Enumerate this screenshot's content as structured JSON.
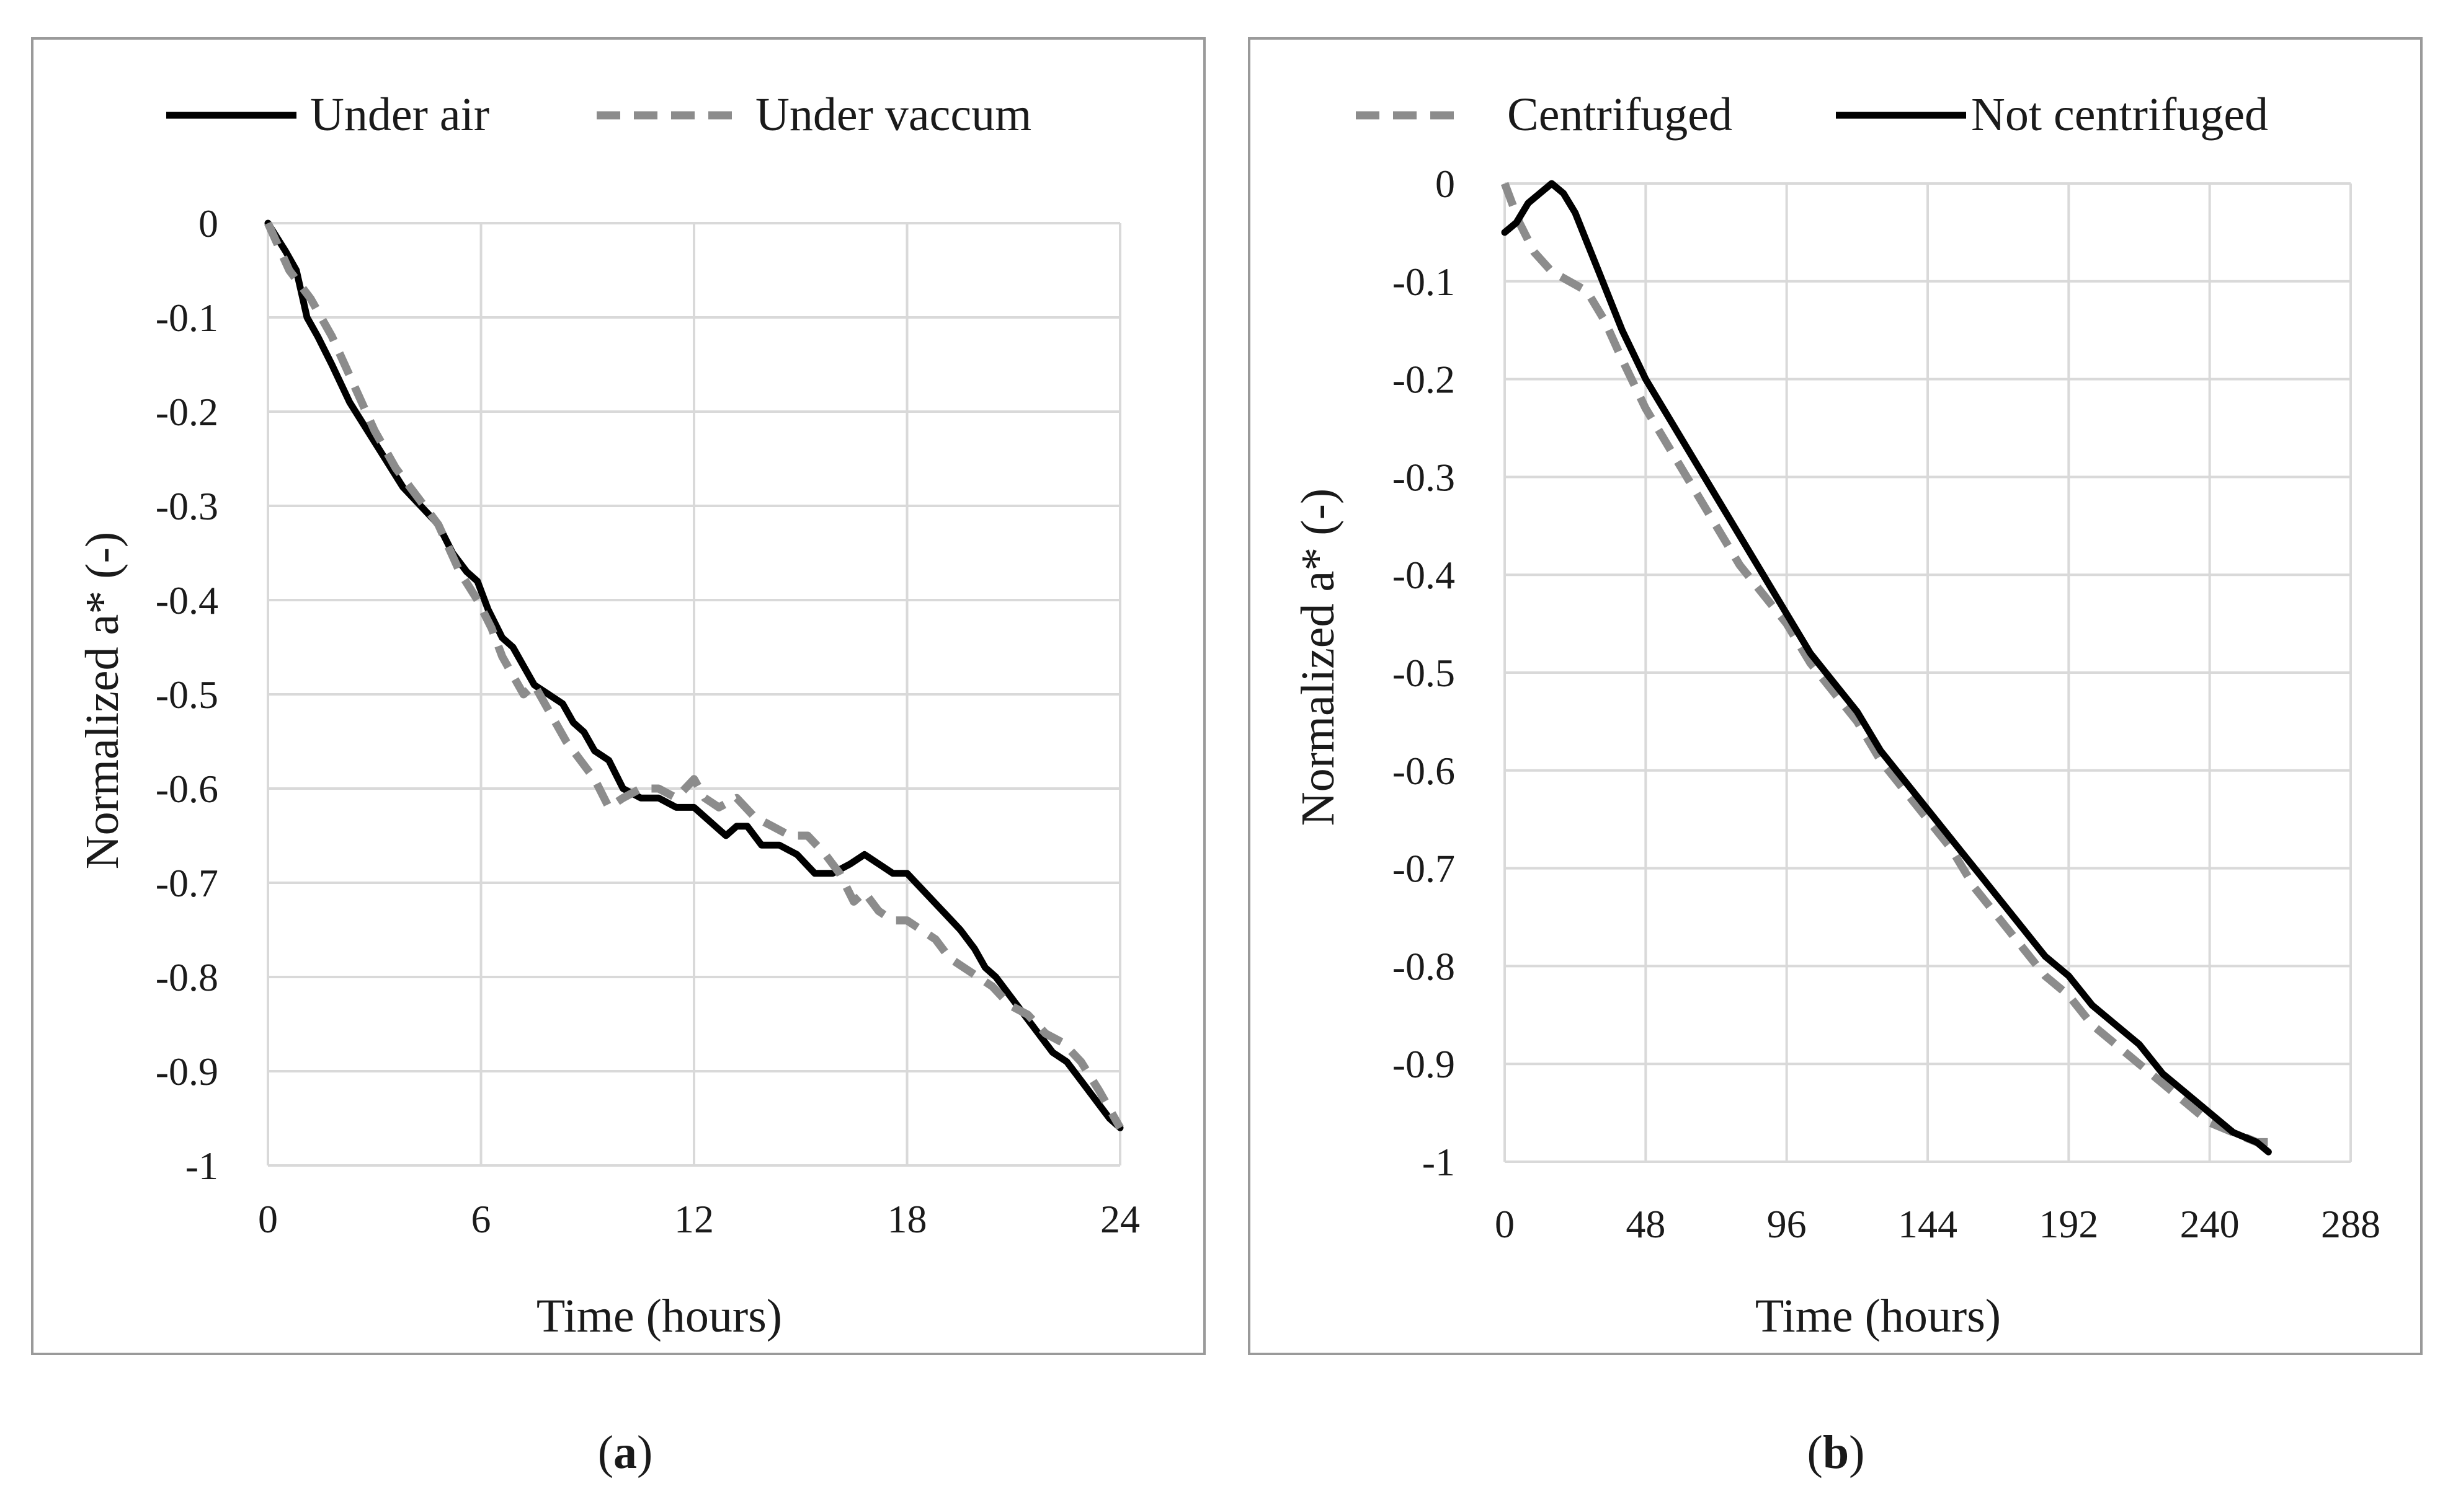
{
  "chart_data": [
    {
      "type": "line",
      "panel_label": "a",
      "xlabel": "Time (hours)",
      "ylabel": "Normalized a* (-)",
      "xlim": [
        0,
        24
      ],
      "ylim": [
        -1,
        0
      ],
      "x_ticks": [
        "0",
        "6",
        "12",
        "18",
        "24"
      ],
      "y_ticks": [
        "0",
        "-0.1",
        "-0.2",
        "-0.3",
        "-0.4",
        "-0.5",
        "-0.6",
        "-0.7",
        "-0.8",
        "-0.9",
        "-1"
      ],
      "legend_position": "top",
      "grid": true,
      "series": [
        {
          "name": "Under air",
          "style": "solid",
          "color": "#000000",
          "x": [
            0,
            0.5,
            0.8,
            1.1,
            1.4,
            1.8,
            2.3,
            2.8,
            3.3,
            3.8,
            4.3,
            4.8,
            5.2,
            5.6,
            5.9,
            6.2,
            6.6,
            6.9,
            7.2,
            7.5,
            7.9,
            8.3,
            8.6,
            8.9,
            9.2,
            9.6,
            10.0,
            10.5,
            11.0,
            11.5,
            12.0,
            12.3,
            12.6,
            12.9,
            13.2,
            13.5,
            13.9,
            14.4,
            14.9,
            15.4,
            15.9,
            16.4,
            16.8,
            17.2,
            17.6,
            18.0,
            18.5,
            19.0,
            19.5,
            19.9,
            20.2,
            20.5,
            20.9,
            21.3,
            21.7,
            22.1,
            22.5,
            22.9,
            23.3,
            23.7,
            24.0
          ],
          "values": [
            0,
            -0.03,
            -0.05,
            -0.1,
            -0.12,
            -0.15,
            -0.19,
            -0.22,
            -0.25,
            -0.28,
            -0.3,
            -0.32,
            -0.35,
            -0.37,
            -0.38,
            -0.41,
            -0.44,
            -0.45,
            -0.47,
            -0.49,
            -0.5,
            -0.51,
            -0.53,
            -0.54,
            -0.56,
            -0.57,
            -0.6,
            -0.61,
            -0.61,
            -0.62,
            -0.62,
            -0.63,
            -0.64,
            -0.65,
            -0.64,
            -0.64,
            -0.66,
            -0.66,
            -0.67,
            -0.69,
            -0.69,
            -0.68,
            -0.67,
            -0.68,
            -0.69,
            -0.69,
            -0.71,
            -0.73,
            -0.75,
            -0.77,
            -0.79,
            -0.8,
            -0.82,
            -0.84,
            -0.86,
            -0.88,
            -0.89,
            -0.91,
            -0.93,
            -0.95,
            -0.96
          ]
        },
        {
          "name": "Under vaccum",
          "style": "dashed",
          "color": "#8c8c8c",
          "x": [
            0,
            0.6,
            1.2,
            1.8,
            2.4,
            3.0,
            3.6,
            4.2,
            4.8,
            5.4,
            5.9,
            6.3,
            6.6,
            6.9,
            7.2,
            7.5,
            7.8,
            8.1,
            8.4,
            8.8,
            9.2,
            9.6,
            10.0,
            10.5,
            11.0,
            11.5,
            12.0,
            12.3,
            12.7,
            13.2,
            13.7,
            14.2,
            14.7,
            15.2,
            15.7,
            16.1,
            16.5,
            16.8,
            17.2,
            17.6,
            18.0,
            18.4,
            18.8,
            19.2,
            19.6,
            20.0,
            20.4,
            20.9,
            21.4,
            21.9,
            22.4,
            22.9,
            23.4,
            24.0
          ],
          "values": [
            0,
            -0.05,
            -0.08,
            -0.12,
            -0.17,
            -0.22,
            -0.26,
            -0.29,
            -0.32,
            -0.37,
            -0.4,
            -0.43,
            -0.46,
            -0.48,
            -0.5,
            -0.49,
            -0.51,
            -0.53,
            -0.55,
            -0.57,
            -0.59,
            -0.62,
            -0.61,
            -0.6,
            -0.6,
            -0.61,
            -0.59,
            -0.61,
            -0.62,
            -0.61,
            -0.63,
            -0.64,
            -0.65,
            -0.65,
            -0.67,
            -0.69,
            -0.72,
            -0.71,
            -0.73,
            -0.74,
            -0.74,
            -0.75,
            -0.76,
            -0.78,
            -0.79,
            -0.8,
            -0.81,
            -0.83,
            -0.84,
            -0.86,
            -0.87,
            -0.89,
            -0.92,
            -0.96
          ]
        }
      ]
    },
    {
      "type": "line",
      "panel_label": "b",
      "xlabel": "Time (hours)",
      "ylabel": "Normalized a* (-)",
      "xlim": [
        0,
        288
      ],
      "ylim": [
        -1,
        0
      ],
      "x_ticks": [
        "0",
        "48",
        "96",
        "144",
        "192",
        "240",
        "288"
      ],
      "y_ticks": [
        "0",
        "-0.1",
        "-0.2",
        "-0.3",
        "-0.4",
        "-0.5",
        "-0.6",
        "-0.7",
        "-0.8",
        "-0.9",
        "-1"
      ],
      "legend_position": "top",
      "grid": true,
      "series": [
        {
          "name": "Centrifuged",
          "style": "dashed",
          "color": "#8c8c8c",
          "x": [
            0,
            5,
            10,
            16,
            22,
            28,
            34,
            40,
            48,
            56,
            64,
            72,
            80,
            88,
            96,
            104,
            112,
            120,
            128,
            136,
            144,
            152,
            160,
            168,
            176,
            184,
            192,
            200,
            208,
            216,
            224,
            232,
            240,
            248,
            256,
            262
          ],
          "values": [
            0,
            -0.04,
            -0.07,
            -0.09,
            -0.1,
            -0.11,
            -0.14,
            -0.18,
            -0.23,
            -0.27,
            -0.31,
            -0.35,
            -0.39,
            -0.42,
            -0.45,
            -0.49,
            -0.52,
            -0.55,
            -0.59,
            -0.62,
            -0.65,
            -0.68,
            -0.72,
            -0.75,
            -0.78,
            -0.81,
            -0.83,
            -0.86,
            -0.88,
            -0.9,
            -0.92,
            -0.94,
            -0.96,
            -0.97,
            -0.98,
            -0.98
          ]
        },
        {
          "name": "Not centrifuged",
          "style": "solid",
          "color": "#000000",
          "x": [
            0,
            4,
            8,
            12,
            16,
            20,
            24,
            28,
            32,
            36,
            40,
            48,
            56,
            64,
            72,
            80,
            88,
            96,
            104,
            112,
            120,
            128,
            136,
            144,
            152,
            160,
            168,
            176,
            184,
            192,
            200,
            208,
            216,
            224,
            232,
            240,
            248,
            256,
            260
          ],
          "values": [
            -0.05,
            -0.04,
            -0.02,
            -0.01,
            0,
            -0.01,
            -0.03,
            -0.06,
            -0.09,
            -0.12,
            -0.15,
            -0.2,
            -0.24,
            -0.28,
            -0.32,
            -0.36,
            -0.4,
            -0.44,
            -0.48,
            -0.51,
            -0.54,
            -0.58,
            -0.61,
            -0.64,
            -0.67,
            -0.7,
            -0.73,
            -0.76,
            -0.79,
            -0.81,
            -0.84,
            -0.86,
            -0.88,
            -0.91,
            -0.93,
            -0.95,
            -0.97,
            -0.98,
            -0.99
          ]
        }
      ]
    }
  ]
}
